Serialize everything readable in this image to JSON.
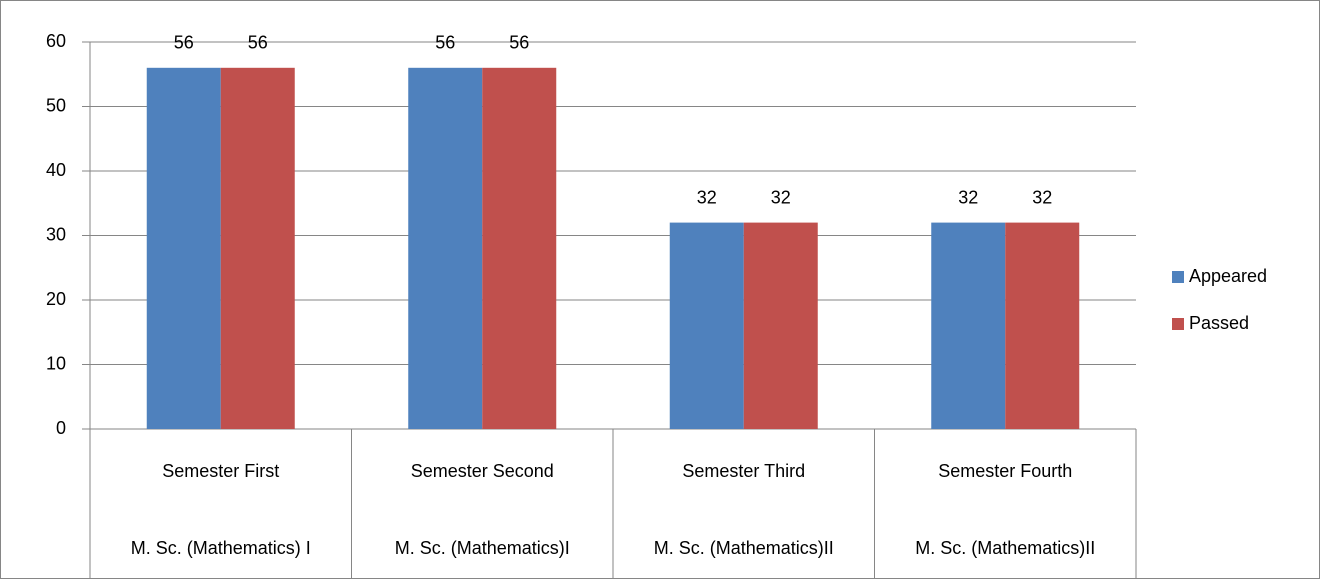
{
  "chart_data": {
    "type": "bar",
    "categories": [
      "Semester First",
      "Semester Second",
      "Semester Third",
      "Semester Fourth"
    ],
    "category_groups": [
      "M. Sc. (Mathematics) I",
      "M. Sc. (Mathematics)I",
      "M. Sc. (Mathematics)II",
      "M. Sc. (Mathematics)II"
    ],
    "series": [
      {
        "name": "Appeared",
        "color": "#4f81bd",
        "values": [
          56,
          56,
          32,
          32
        ]
      },
      {
        "name": "Passed",
        "color": "#c0504d",
        "values": [
          56,
          56,
          32,
          32
        ]
      }
    ],
    "ylim": [
      0,
      60
    ],
    "yticks": [
      0,
      10,
      20,
      30,
      40,
      50,
      60
    ],
    "grid": true,
    "legend": "right"
  }
}
